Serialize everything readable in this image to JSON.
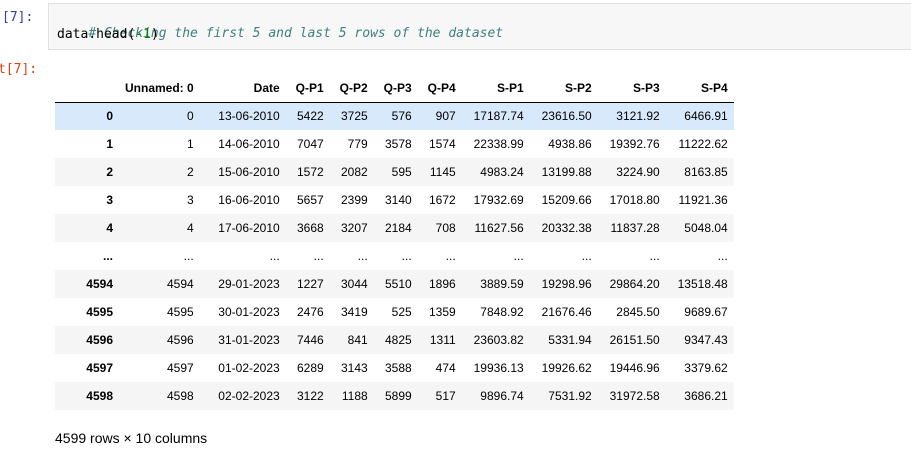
{
  "cell": {
    "in_prompt": "[7]:",
    "out_prompt": "t[7]:",
    "code_comment": "# Checking the first 5 and last 5 rows of the dataset",
    "code_call": "data.head(",
    "code_arg": "-1",
    "code_close": ")"
  },
  "table": {
    "headers": [
      "",
      "Unnamed: 0",
      "Date",
      "Q-P1",
      "Q-P2",
      "Q-P3",
      "Q-P4",
      "S-P1",
      "S-P2",
      "S-P3",
      "S-P4"
    ],
    "rows": [
      [
        "0",
        "0",
        "13-06-2010",
        "5422",
        "3725",
        "576",
        "907",
        "17187.74",
        "23616.50",
        "3121.92",
        "6466.91"
      ],
      [
        "1",
        "1",
        "14-06-2010",
        "7047",
        "779",
        "3578",
        "1574",
        "22338.99",
        "4938.86",
        "19392.76",
        "11222.62"
      ],
      [
        "2",
        "2",
        "15-06-2010",
        "1572",
        "2082",
        "595",
        "1145",
        "4983.24",
        "13199.88",
        "3224.90",
        "8163.85"
      ],
      [
        "3",
        "3",
        "16-06-2010",
        "5657",
        "2399",
        "3140",
        "1672",
        "17932.69",
        "15209.66",
        "17018.80",
        "11921.36"
      ],
      [
        "4",
        "4",
        "17-06-2010",
        "3668",
        "3207",
        "2184",
        "708",
        "11627.56",
        "20332.38",
        "11837.28",
        "5048.04"
      ],
      [
        "...",
        "...",
        "...",
        "...",
        "...",
        "...",
        "...",
        "...",
        "...",
        "...",
        "..."
      ],
      [
        "4594",
        "4594",
        "29-01-2023",
        "1227",
        "3044",
        "5510",
        "1896",
        "3889.59",
        "19298.96",
        "29864.20",
        "13518.48"
      ],
      [
        "4595",
        "4595",
        "30-01-2023",
        "2476",
        "3419",
        "525",
        "1359",
        "7848.92",
        "21676.46",
        "2845.50",
        "9689.67"
      ],
      [
        "4596",
        "4596",
        "31-01-2023",
        "7446",
        "841",
        "4825",
        "1311",
        "23603.82",
        "5331.94",
        "26151.50",
        "9347.43"
      ],
      [
        "4597",
        "4597",
        "01-02-2023",
        "6289",
        "3143",
        "3588",
        "474",
        "19936.13",
        "19926.62",
        "19446.96",
        "3379.62"
      ],
      [
        "4598",
        "4598",
        "02-02-2023",
        "3122",
        "1188",
        "5899",
        "517",
        "9896.74",
        "7531.92",
        "31972.58",
        "3686.21"
      ]
    ],
    "hovered_row": 0
  },
  "shape": "4599 rows × 10 columns",
  "colors": {
    "in_prompt": "#303f9f",
    "out_prompt": "#d84315",
    "row_hover": "#d8e9fb",
    "row_stripe": "#f5f5f5",
    "comment": "#408080",
    "number": "#008800"
  }
}
